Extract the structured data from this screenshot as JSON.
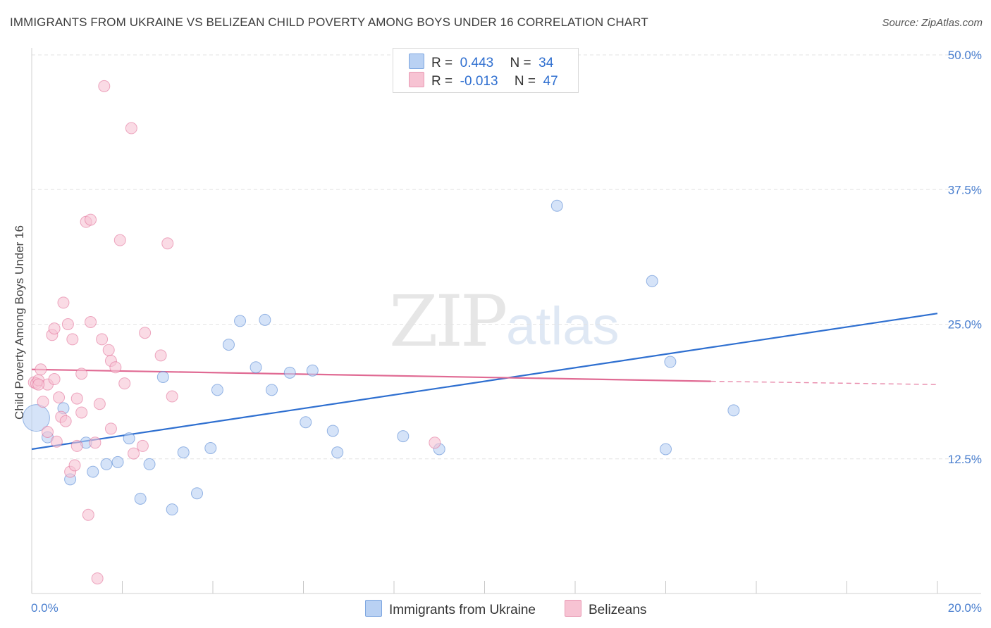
{
  "title": "IMMIGRANTS FROM UKRAINE VS BELIZEAN CHILD POVERTY AMONG BOYS UNDER 16 CORRELATION CHART",
  "source": "Source: ZipAtlas.com",
  "watermark": {
    "zip": "ZIP",
    "atlas": "atlas"
  },
  "legend": {
    "rows": [
      {
        "r_label": "R =",
        "r_value": "0.443",
        "n_label": "N =",
        "n_value": "34",
        "color": "#b9d1f3"
      },
      {
        "r_label": "R =",
        "r_value": "-0.013",
        "n_label": "N =",
        "n_value": "47",
        "color": "#f7c3d3"
      }
    ]
  },
  "bottom_legend": [
    {
      "label": "Immigrants from Ukraine",
      "color": "#b9d1f3"
    },
    {
      "label": "Belizeans",
      "color": "#f7c3d3"
    }
  ],
  "chart_data": {
    "type": "scatter",
    "title": "IMMIGRANTS FROM UKRAINE VS BELIZEAN CHILD POVERTY AMONG BOYS UNDER 16 CORRELATION CHART",
    "xlabel": "",
    "ylabel": "Child Poverty Among Boys Under 16",
    "xlim": [
      0,
      20
    ],
    "ylim": [
      0,
      50
    ],
    "x_tick_labels": [
      "0.0%",
      "20.0%"
    ],
    "y_ticks": [
      12.5,
      25.0,
      37.5,
      50.0
    ],
    "y_tick_labels": [
      "12.5%",
      "25.0%",
      "37.5%",
      "50.0%"
    ],
    "grid": true,
    "legend_position": "top-center",
    "series": [
      {
        "name": "Immigrants from Ukraine",
        "color": "#4a7fcf",
        "fill": "#b9d1f3",
        "trend": {
          "x": [
            0,
            20
          ],
          "y": [
            13.4,
            26.0
          ],
          "dashed_from": null
        },
        "points": [
          {
            "x": 0.1,
            "y": 16.3,
            "big": true
          },
          {
            "x": 0.35,
            "y": 14.5
          },
          {
            "x": 0.7,
            "y": 17.2
          },
          {
            "x": 0.85,
            "y": 10.6
          },
          {
            "x": 1.2,
            "y": 14.0
          },
          {
            "x": 1.35,
            "y": 11.3
          },
          {
            "x": 1.65,
            "y": 12.0
          },
          {
            "x": 1.9,
            "y": 12.2
          },
          {
            "x": 2.15,
            "y": 14.4
          },
          {
            "x": 2.4,
            "y": 8.8
          },
          {
            "x": 2.6,
            "y": 12.0
          },
          {
            "x": 2.9,
            "y": 20.1
          },
          {
            "x": 3.1,
            "y": 7.8
          },
          {
            "x": 3.35,
            "y": 13.1
          },
          {
            "x": 3.65,
            "y": 9.3
          },
          {
            "x": 3.95,
            "y": 13.5
          },
          {
            "x": 4.1,
            "y": 18.9
          },
          {
            "x": 4.35,
            "y": 23.1
          },
          {
            "x": 4.6,
            "y": 25.3
          },
          {
            "x": 4.95,
            "y": 21.0
          },
          {
            "x": 5.15,
            "y": 25.4
          },
          {
            "x": 5.3,
            "y": 18.9
          },
          {
            "x": 5.7,
            "y": 20.5
          },
          {
            "x": 6.05,
            "y": 15.9
          },
          {
            "x": 6.2,
            "y": 20.7
          },
          {
            "x": 6.65,
            "y": 15.1
          },
          {
            "x": 6.75,
            "y": 13.1
          },
          {
            "x": 8.2,
            "y": 14.6
          },
          {
            "x": 9.0,
            "y": 13.4
          },
          {
            "x": 11.6,
            "y": 36.0
          },
          {
            "x": 13.7,
            "y": 29.0
          },
          {
            "x": 14.1,
            "y": 21.5
          },
          {
            "x": 14.0,
            "y": 13.4
          },
          {
            "x": 15.5,
            "y": 17.0
          }
        ]
      },
      {
        "name": "Belizeans",
        "color": "#e06a93",
        "fill": "#f7c3d3",
        "trend": {
          "x": [
            0,
            15
          ],
          "y": [
            20.8,
            19.7
          ],
          "dashed_to": [
            20,
            19.4
          ]
        },
        "points": [
          {
            "x": 0.05,
            "y": 19.6
          },
          {
            "x": 0.1,
            "y": 19.5
          },
          {
            "x": 0.15,
            "y": 19.8
          },
          {
            "x": 0.2,
            "y": 20.8
          },
          {
            "x": 0.25,
            "y": 17.8
          },
          {
            "x": 0.35,
            "y": 15.0
          },
          {
            "x": 0.35,
            "y": 19.4
          },
          {
            "x": 0.45,
            "y": 24.0
          },
          {
            "x": 0.5,
            "y": 19.9
          },
          {
            "x": 0.5,
            "y": 24.6
          },
          {
            "x": 0.55,
            "y": 14.1
          },
          {
            "x": 0.6,
            "y": 18.2
          },
          {
            "x": 0.65,
            "y": 16.4
          },
          {
            "x": 0.7,
            "y": 27.0
          },
          {
            "x": 0.75,
            "y": 16.0
          },
          {
            "x": 0.8,
            "y": 25.0
          },
          {
            "x": 0.85,
            "y": 11.3
          },
          {
            "x": 0.9,
            "y": 23.6
          },
          {
            "x": 0.95,
            "y": 11.9
          },
          {
            "x": 1.0,
            "y": 13.7
          },
          {
            "x": 1.0,
            "y": 18.1
          },
          {
            "x": 1.1,
            "y": 16.8
          },
          {
            "x": 1.1,
            "y": 20.4
          },
          {
            "x": 1.2,
            "y": 34.5
          },
          {
            "x": 1.25,
            "y": 7.3
          },
          {
            "x": 1.3,
            "y": 34.7
          },
          {
            "x": 1.3,
            "y": 25.2
          },
          {
            "x": 1.4,
            "y": 14.0
          },
          {
            "x": 1.45,
            "y": 1.4
          },
          {
            "x": 1.5,
            "y": 17.6
          },
          {
            "x": 1.55,
            "y": 23.6
          },
          {
            "x": 1.6,
            "y": 47.1
          },
          {
            "x": 1.7,
            "y": 22.6
          },
          {
            "x": 1.75,
            "y": 21.6
          },
          {
            "x": 1.75,
            "y": 15.3
          },
          {
            "x": 1.85,
            "y": 21.0
          },
          {
            "x": 1.95,
            "y": 32.8
          },
          {
            "x": 2.05,
            "y": 19.5
          },
          {
            "x": 2.2,
            "y": 43.2
          },
          {
            "x": 2.25,
            "y": 13.0
          },
          {
            "x": 2.45,
            "y": 13.7
          },
          {
            "x": 2.5,
            "y": 24.2
          },
          {
            "x": 2.85,
            "y": 22.1
          },
          {
            "x": 3.0,
            "y": 32.5
          },
          {
            "x": 3.1,
            "y": 18.3
          },
          {
            "x": 8.9,
            "y": 14.0
          },
          {
            "x": 0.15,
            "y": 19.4
          }
        ]
      }
    ]
  }
}
